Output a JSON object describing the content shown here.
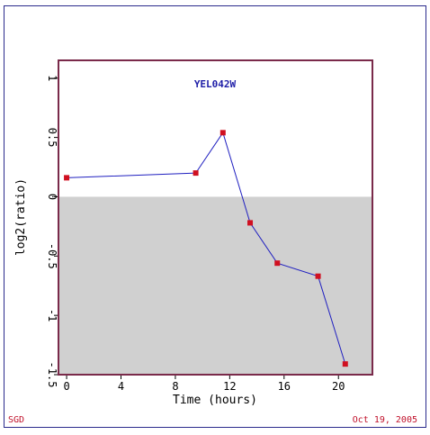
{
  "footer": {
    "source": "SGD",
    "date": "Oct 19, 2005"
  },
  "colors": {
    "frame": "#2b2b8c",
    "plot_border": "#7a2a4a",
    "negative_fill": "#d0d0d0",
    "line": "#2020c0",
    "marker": "#d01020",
    "title": "#1f1fa8",
    "footer": "#c0102a"
  },
  "chart_data": {
    "type": "line",
    "title": "YEL042W",
    "xlabel": "Time (hours)",
    "ylabel": "log2(ratio)",
    "xlim": [
      -0.6,
      22.5
    ],
    "ylim": [
      -1.5,
      1.15
    ],
    "xticks": [
      0,
      4,
      8,
      12,
      16,
      20
    ],
    "yticks": [
      -1.5,
      -1,
      -0.5,
      0,
      0.5,
      1
    ],
    "ytick_labels": [
      "-1.5",
      "-1",
      "-0.5",
      "0",
      "0.5",
      "1"
    ],
    "negative_region_shaded": true,
    "series": [
      {
        "x": [
          0,
          9.5,
          11.5,
          13.5,
          15.5,
          18.5,
          20.5
        ],
        "y": [
          0.16,
          0.2,
          0.54,
          -0.22,
          -0.56,
          -0.67,
          -1.41
        ]
      }
    ]
  }
}
